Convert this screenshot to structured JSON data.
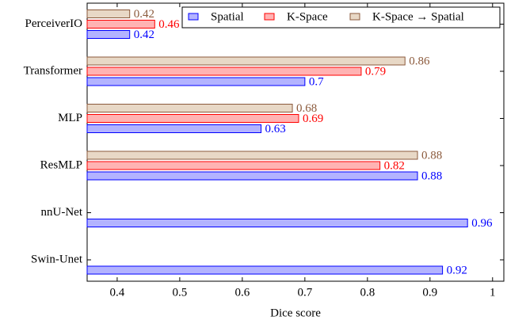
{
  "chart_data": {
    "type": "barh",
    "xlabel": "Dice score",
    "categories": [
      "PerceiverIO",
      "Transformer",
      "MLP",
      "ResMLP",
      "nnU-Net",
      "Swin-Unet"
    ],
    "series": [
      {
        "name": "Spatial",
        "color": "#b3b3ff",
        "edgecolor": "#0000ff",
        "values": [
          0.42,
          0.7,
          0.63,
          0.88,
          0.96,
          0.92
        ]
      },
      {
        "name": "K-Space",
        "color": "#ffb3b3",
        "edgecolor": "#ff0000",
        "values": [
          0.46,
          0.79,
          0.69,
          0.82,
          null,
          null
        ]
      },
      {
        "name": "K-Space → Spatial",
        "color": "#e8d8c6",
        "edgecolor": "#8b5a3c",
        "values": [
          0.42,
          0.86,
          0.68,
          0.88,
          null,
          null
        ]
      }
    ],
    "xlim": [
      0.352,
      1.018
    ],
    "xticks": [
      0.4,
      0.5,
      0.6,
      0.7,
      0.8,
      0.9,
      1
    ],
    "legend": "upper right"
  }
}
